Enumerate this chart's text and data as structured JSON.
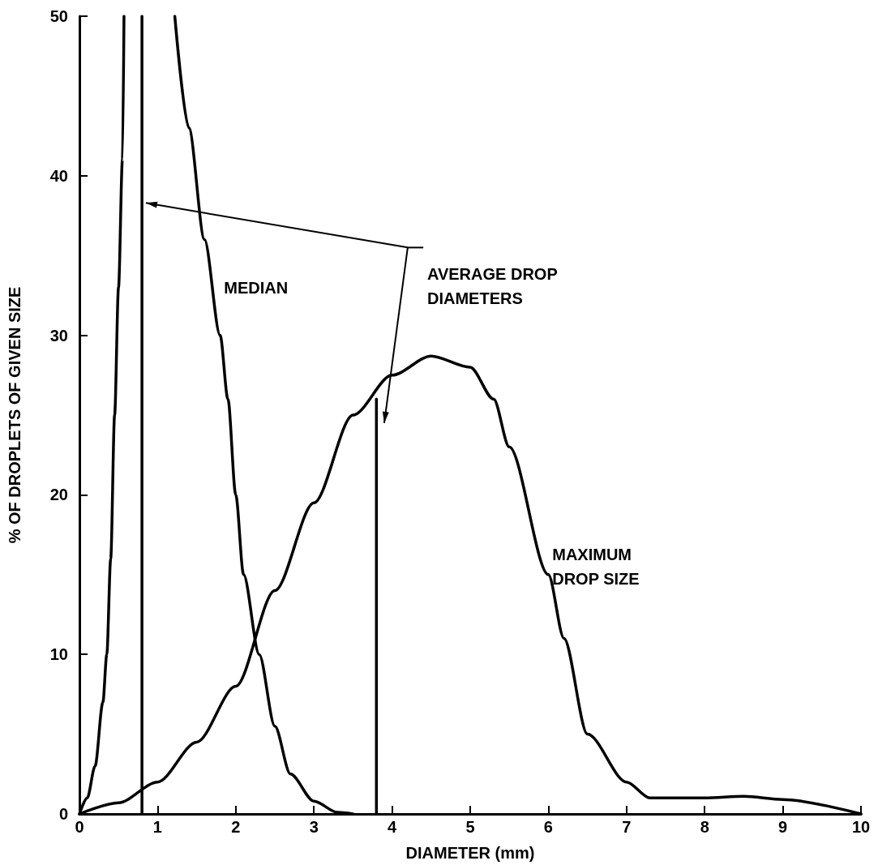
{
  "chart_data": {
    "type": "line",
    "xlabel": "DIAMETER (mm)",
    "ylabel": "% OF DROPLETS OF GIVEN SIZE",
    "annotations": [
      "AVERAGE DROP\nDIAMETERS"
    ],
    "series": [
      {
        "name": "MEDIAN",
        "color": "#000000",
        "x": [
          0,
          0.1,
          0.2,
          0.3,
          0.35,
          0.4,
          0.45,
          0.5,
          0.55,
          0.57,
          0.9,
          1.22,
          1.4,
          1.6,
          1.8,
          1.9,
          2.0,
          2.1,
          2.3,
          2.5,
          2.7,
          3.0,
          3.3,
          3.5
        ],
        "values": [
          0,
          1,
          3,
          7,
          10,
          16,
          25,
          33,
          41,
          50,
          null,
          50,
          43,
          36,
          30,
          26,
          20,
          15,
          10,
          5.5,
          2.5,
          0.8,
          0.1,
          0
        ]
      },
      {
        "name": "MAXIMUM DROP SIZE",
        "color": "#000000",
        "x": [
          0,
          0.5,
          1,
          1.5,
          2,
          2.5,
          3,
          3.5,
          4,
          4.5,
          5,
          5.3,
          5.5,
          6,
          6.2,
          6.5,
          7,
          7.3,
          8,
          8.5,
          9,
          10
        ],
        "values": [
          0,
          0.7,
          2,
          4.5,
          8,
          14,
          19.5,
          25,
          27.5,
          28.7,
          28,
          26,
          23,
          15,
          11,
          5,
          2,
          1,
          1,
          1.1,
          0.9,
          0
        ]
      },
      {
        "color": "#000000",
        "x": [
          0.8,
          0.8
        ],
        "values": [
          0,
          50
        ]
      },
      {
        "color": "#000000",
        "x": [
          3.8,
          3.8
        ],
        "values": [
          0,
          26
        ]
      }
    ],
    "xlim": [
      0,
      10
    ],
    "xticks": [
      0,
      1,
      2,
      3,
      4,
      5,
      6,
      7,
      8,
      9,
      10
    ],
    "ylim": [
      0,
      50
    ],
    "yticks": [
      0,
      10,
      20,
      30,
      40,
      50
    ],
    "grid": false,
    "legend": false,
    "marker": "none",
    "line_style": "solid"
  }
}
